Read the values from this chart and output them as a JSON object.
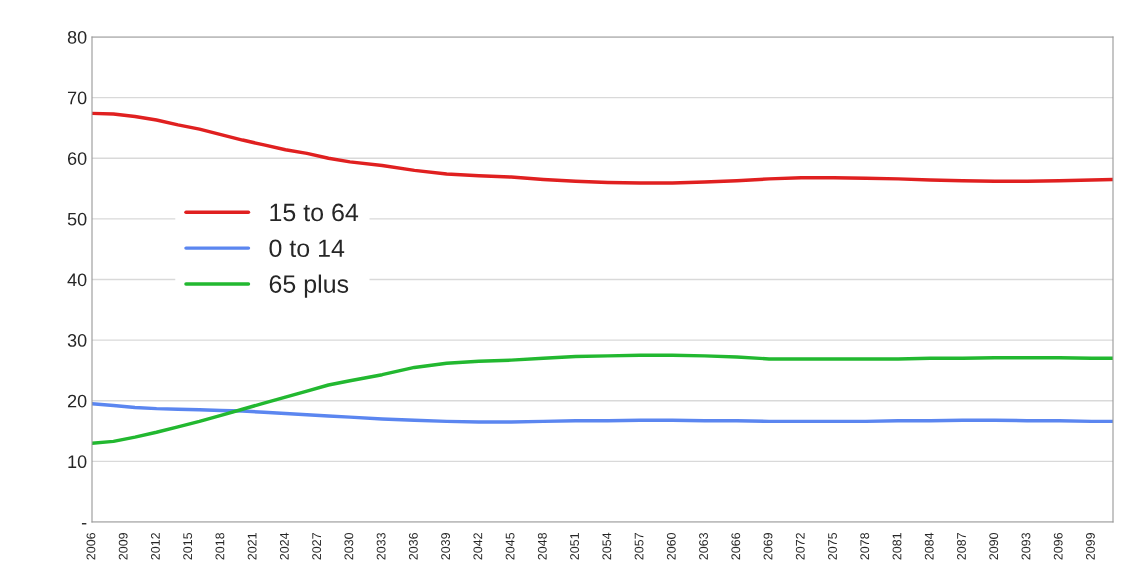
{
  "chart_data": {
    "type": "line",
    "x": [
      2006,
      2008,
      2010,
      2012,
      2014,
      2016,
      2018,
      2020,
      2022,
      2024,
      2026,
      2028,
      2030,
      2033,
      2036,
      2039,
      2042,
      2045,
      2048,
      2051,
      2054,
      2057,
      2060,
      2063,
      2066,
      2069,
      2072,
      2075,
      2078,
      2081,
      2084,
      2087,
      2090,
      2093,
      2096,
      2099,
      2101
    ],
    "series": [
      {
        "name": "15 to 64",
        "color": "#e02020",
        "values": [
          67.4,
          67.3,
          66.9,
          66.3,
          65.5,
          64.8,
          63.9,
          63.0,
          62.2,
          61.4,
          60.8,
          60.0,
          59.4,
          58.8,
          58.0,
          57.4,
          57.1,
          56.9,
          56.5,
          56.2,
          56.0,
          55.9,
          55.9,
          56.1,
          56.3,
          56.6,
          56.8,
          56.8,
          56.7,
          56.6,
          56.4,
          56.3,
          56.2,
          56.2,
          56.3,
          56.4,
          56.5
        ]
      },
      {
        "name": "0 to 14",
        "color": "#5b86f0",
        "values": [
          19.5,
          19.2,
          18.9,
          18.7,
          18.6,
          18.5,
          18.4,
          18.3,
          18.1,
          17.9,
          17.7,
          17.5,
          17.3,
          17.0,
          16.8,
          16.6,
          16.5,
          16.5,
          16.6,
          16.7,
          16.7,
          16.8,
          16.8,
          16.7,
          16.7,
          16.6,
          16.6,
          16.6,
          16.6,
          16.7,
          16.7,
          16.8,
          16.8,
          16.7,
          16.7,
          16.6,
          16.6
        ]
      },
      {
        "name": "65 plus",
        "color": "#22b830",
        "values": [
          13.0,
          13.3,
          14.0,
          14.8,
          15.7,
          16.6,
          17.6,
          18.6,
          19.6,
          20.6,
          21.6,
          22.6,
          23.3,
          24.3,
          25.5,
          26.2,
          26.5,
          26.7,
          27.0,
          27.3,
          27.4,
          27.5,
          27.5,
          27.4,
          27.2,
          26.9,
          26.9,
          26.9,
          26.9,
          26.9,
          27.0,
          27.0,
          27.1,
          27.1,
          27.1,
          27.0,
          27.0
        ]
      }
    ],
    "xlim": [
      2006,
      2101
    ],
    "xticks": [
      2006,
      2009,
      2012,
      2015,
      2018,
      2021,
      2024,
      2027,
      2030,
      2033,
      2036,
      2039,
      2042,
      2045,
      2048,
      2051,
      2054,
      2057,
      2060,
      2063,
      2066,
      2069,
      2072,
      2075,
      2078,
      2081,
      2084,
      2087,
      2090,
      2093,
      2096,
      2099
    ],
    "ylim": [
      0,
      80
    ],
    "yticks": [
      {
        "value": 0,
        "label": "-"
      },
      10,
      20,
      30,
      40,
      50,
      60,
      70,
      80
    ],
    "grid": "y",
    "legend": "left",
    "marker": "none",
    "line_style": "solid"
  }
}
